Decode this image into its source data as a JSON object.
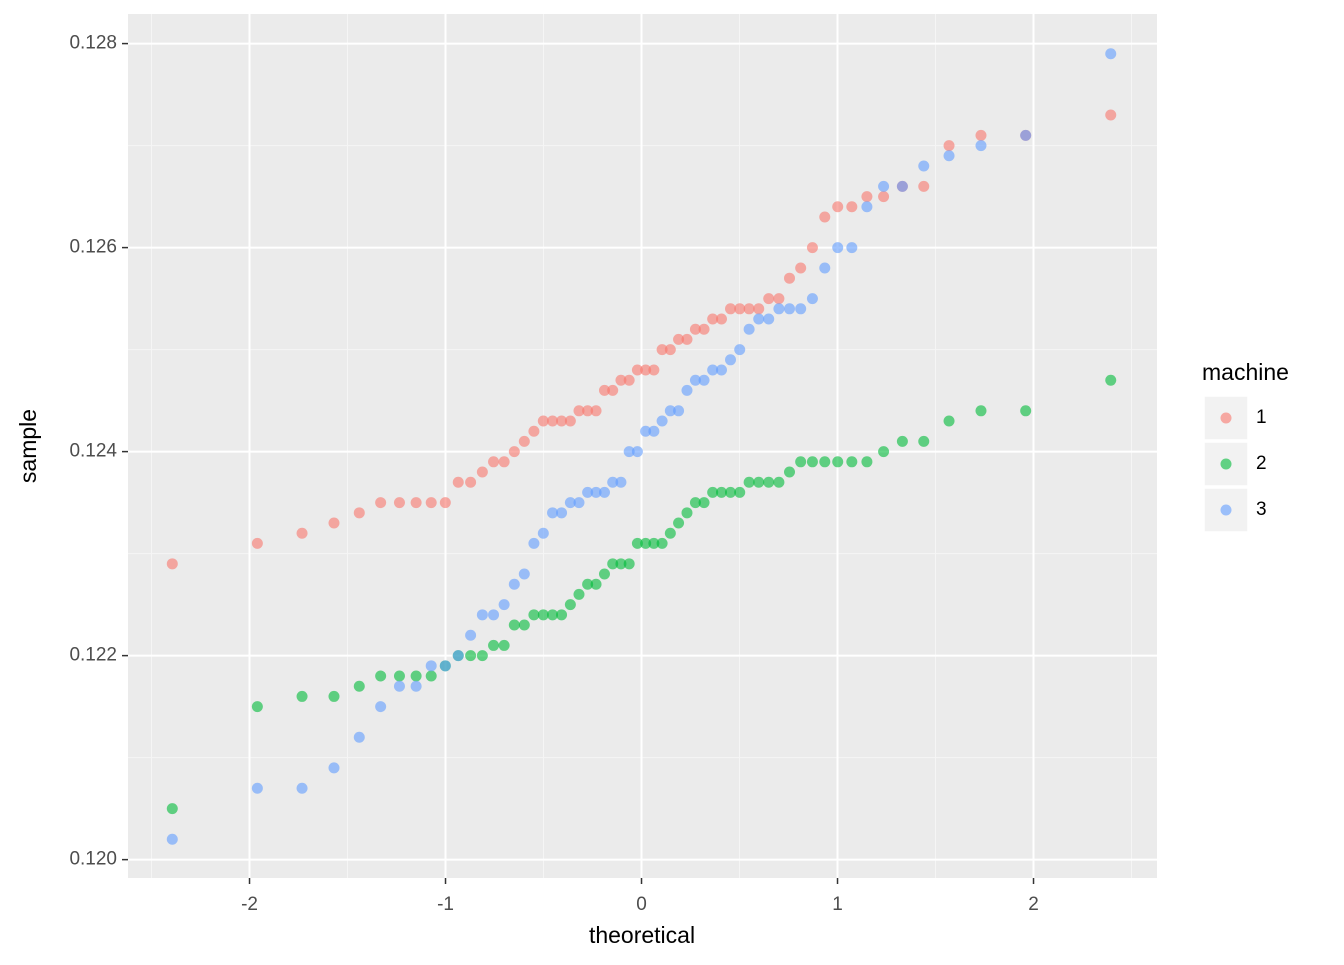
{
  "chart_data": {
    "type": "scatter",
    "x_label": "theoretical",
    "y_label": "sample",
    "legend_title": "machine",
    "x": [
      -2.394,
      -1.96,
      -1.732,
      -1.569,
      -1.44,
      -1.331,
      -1.235,
      -1.15,
      -1.073,
      -1.001,
      -0.935,
      -0.872,
      -0.812,
      -0.755,
      -0.701,
      -0.649,
      -0.598,
      -0.549,
      -0.501,
      -0.454,
      -0.408,
      -0.363,
      -0.319,
      -0.275,
      -0.232,
      -0.189,
      -0.147,
      -0.105,
      -0.063,
      -0.021,
      0.021,
      0.063,
      0.105,
      0.147,
      0.189,
      0.232,
      0.275,
      0.319,
      0.363,
      0.408,
      0.454,
      0.501,
      0.549,
      0.598,
      0.649,
      0.701,
      0.755,
      0.812,
      0.872,
      0.935,
      1.001,
      1.073,
      1.15,
      1.235,
      1.331,
      1.44,
      1.569,
      1.732,
      1.96,
      2.394
    ],
    "series": [
      {
        "name": "1",
        "color": "#F8766D",
        "values": [
          0.1229,
          0.1231,
          0.1232,
          0.1233,
          0.1234,
          0.1235,
          0.1235,
          0.1235,
          0.1235,
          0.1235,
          0.1237,
          0.1237,
          0.1238,
          0.1239,
          0.1239,
          0.124,
          0.1241,
          0.1242,
          0.1243,
          0.1243,
          0.1243,
          0.1243,
          0.1244,
          0.1244,
          0.1244,
          0.1246,
          0.1246,
          0.1247,
          0.1247,
          0.1248,
          0.1248,
          0.1248,
          0.125,
          0.125,
          0.1251,
          0.1251,
          0.1252,
          0.1252,
          0.1253,
          0.1253,
          0.1254,
          0.1254,
          0.1254,
          0.1254,
          0.1255,
          0.1255,
          0.1257,
          0.1258,
          0.126,
          0.1263,
          0.1264,
          0.1264,
          0.1265,
          0.1265,
          0.1266,
          0.1266,
          0.127,
          0.1271,
          0.1271,
          0.1273
        ]
      },
      {
        "name": "2",
        "color": "#00BA38",
        "values": [
          0.1205,
          0.1215,
          0.1216,
          0.1216,
          0.1217,
          0.1218,
          0.1218,
          0.1218,
          0.1218,
          0.1219,
          0.122,
          0.122,
          0.122,
          0.1221,
          0.1221,
          0.1223,
          0.1223,
          0.1224,
          0.1224,
          0.1224,
          0.1224,
          0.1225,
          0.1226,
          0.1227,
          0.1227,
          0.1228,
          0.1229,
          0.1229,
          0.1229,
          0.1231,
          0.1231,
          0.1231,
          0.1231,
          0.1232,
          0.1233,
          0.1234,
          0.1235,
          0.1235,
          0.1236,
          0.1236,
          0.1236,
          0.1236,
          0.1237,
          0.1237,
          0.1237,
          0.1237,
          0.1238,
          0.1239,
          0.1239,
          0.1239,
          0.1239,
          0.1239,
          0.1239,
          0.124,
          0.1241,
          0.1241,
          0.1243,
          0.1244,
          0.1244,
          0.1247
        ]
      },
      {
        "name": "3",
        "color": "#619CFF",
        "values": [
          0.1202,
          0.1207,
          0.1207,
          0.1209,
          0.1212,
          0.1215,
          0.1217,
          0.1217,
          0.1219,
          0.1219,
          0.122,
          0.1222,
          0.1224,
          0.1224,
          0.1225,
          0.1227,
          0.1228,
          0.1231,
          0.1232,
          0.1234,
          0.1234,
          0.1235,
          0.1235,
          0.1236,
          0.1236,
          0.1236,
          0.1237,
          0.1237,
          0.124,
          0.124,
          0.1242,
          0.1242,
          0.1243,
          0.1244,
          0.1244,
          0.1246,
          0.1247,
          0.1247,
          0.1248,
          0.1248,
          0.1249,
          0.125,
          0.1252,
          0.1253,
          0.1253,
          0.1254,
          0.1254,
          0.1254,
          0.1255,
          0.1258,
          0.126,
          0.126,
          0.1264,
          0.1266,
          0.1266,
          0.1268,
          0.1269,
          0.127,
          0.1271,
          0.1279
        ]
      }
    ],
    "xlim": [
      -2.62,
      2.63
    ],
    "ylim": [
      0.11982,
      0.12829
    ],
    "xticks": [
      -2,
      -1,
      0,
      1,
      2
    ],
    "yticks": [
      {
        "value": 0.12,
        "label": "0.120"
      },
      0.122,
      0.124,
      0.126,
      0.128
    ],
    "grid": true,
    "legend_position": "right"
  }
}
